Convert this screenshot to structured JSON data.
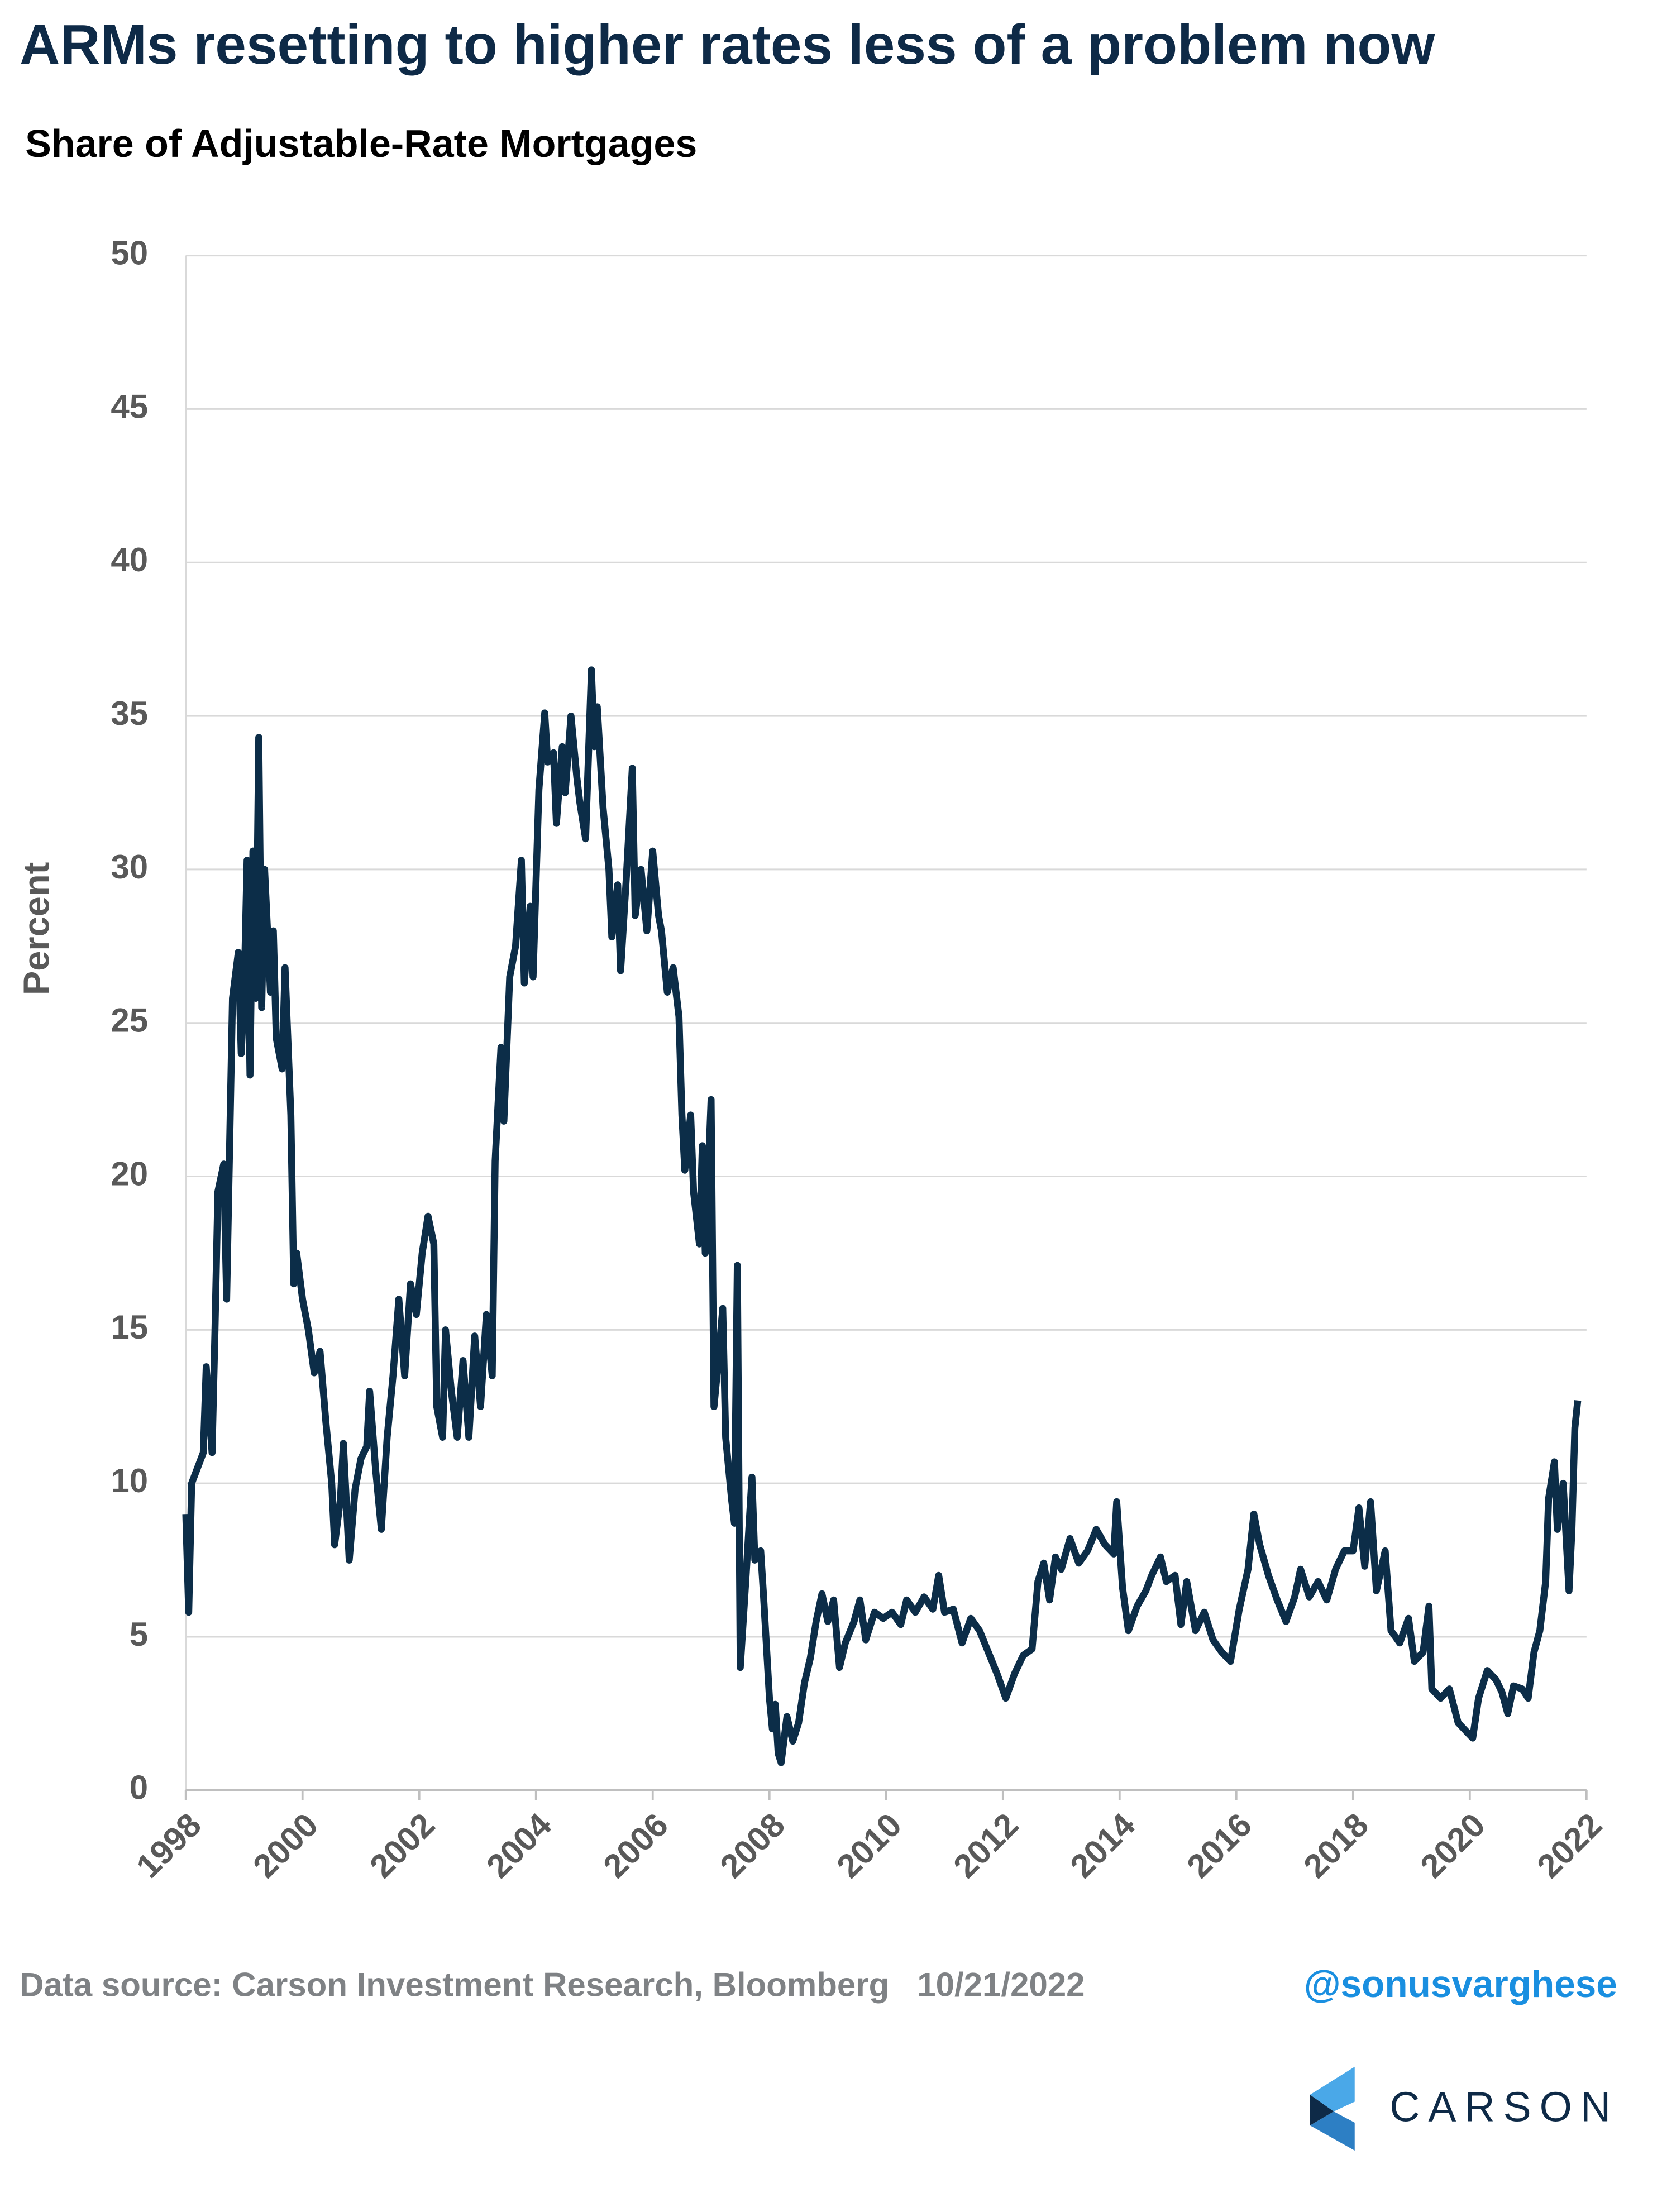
{
  "chart_data": {
    "type": "line",
    "title": "ARMs resetting to higher rates less of a problem now",
    "subtitle": "Share of Adjustable-Rate Mortgages",
    "y_label": "Percent",
    "source": "Data source: Carson Investment Research, Bloomberg   10/21/2022",
    "handle": "@sonusvarghese",
    "logo": "CARSON",
    "color": "#0c2d48",
    "grid": true,
    "xlim": [
      1998,
      2022
    ],
    "xticks": [
      1998,
      2000,
      2002,
      2004,
      2006,
      2008,
      2010,
      2012,
      2014,
      2016,
      2018,
      2020,
      2022
    ],
    "ylim": [
      0,
      50
    ],
    "yticks": [
      0,
      5,
      10,
      15,
      20,
      25,
      30,
      35,
      40,
      45,
      50
    ],
    "x": [
      1998.0,
      1998.05,
      1998.1,
      1998.2,
      1998.3,
      1998.35,
      1998.45,
      1998.5,
      1998.55,
      1998.65,
      1998.7,
      1998.8,
      1998.9,
      1998.95,
      1999.0,
      1999.05,
      1999.1,
      1999.15,
      1999.2,
      1999.25,
      1999.3,
      1999.35,
      1999.45,
      1999.5,
      1999.55,
      1999.65,
      1999.7,
      1999.8,
      1999.85,
      1999.9,
      2000.0,
      2000.1,
      2000.2,
      2000.3,
      2000.4,
      2000.5,
      2000.55,
      2000.65,
      2000.7,
      2000.8,
      2000.9,
      2001.0,
      2001.1,
      2001.15,
      2001.25,
      2001.35,
      2001.45,
      2001.55,
      2001.65,
      2001.75,
      2001.85,
      2001.95,
      2002.05,
      2002.15,
      2002.25,
      2002.3,
      2002.4,
      2002.45,
      2002.55,
      2002.65,
      2002.75,
      2002.85,
      2002.95,
      2003.05,
      2003.15,
      2003.25,
      2003.3,
      2003.4,
      2003.45,
      2003.55,
      2003.65,
      2003.75,
      2003.8,
      2003.9,
      2003.95,
      2004.05,
      2004.15,
      2004.2,
      2004.3,
      2004.35,
      2004.45,
      2004.5,
      2004.6,
      2004.7,
      2004.75,
      2004.85,
      2004.95,
      2005.0,
      2005.05,
      2005.15,
      2005.25,
      2005.3,
      2005.4,
      2005.45,
      2005.55,
      2005.65,
      2005.7,
      2005.8,
      2005.9,
      2006.0,
      2006.1,
      2006.15,
      2006.25,
      2006.35,
      2006.45,
      2006.5,
      2006.55,
      2006.65,
      2006.7,
      2006.8,
      2006.85,
      2006.9,
      2007.0,
      2007.05,
      2007.1,
      2007.2,
      2007.25,
      2007.35,
      2007.4,
      2007.45,
      2007.5,
      2007.6,
      2007.7,
      2007.75,
      2007.85,
      2007.9,
      2008.0,
      2008.05,
      2008.1,
      2008.15,
      2008.2,
      2008.3,
      2008.4,
      2008.5,
      2008.6,
      2008.7,
      2008.8,
      2008.9,
      2009.0,
      2009.1,
      2009.2,
      2009.3,
      2009.45,
      2009.55,
      2009.65,
      2009.8,
      2009.95,
      2010.1,
      2010.25,
      2010.35,
      2010.5,
      2010.65,
      2010.8,
      2010.9,
      2011.0,
      2011.15,
      2011.3,
      2011.45,
      2011.6,
      2011.75,
      2011.9,
      2012.05,
      2012.2,
      2012.35,
      2012.5,
      2012.6,
      2012.7,
      2012.8,
      2012.9,
      2013.0,
      2013.15,
      2013.3,
      2013.45,
      2013.6,
      2013.75,
      2013.9,
      2013.95,
      2014.05,
      2014.15,
      2014.3,
      2014.45,
      2014.55,
      2014.7,
      2014.8,
      2014.95,
      2015.05,
      2015.15,
      2015.3,
      2015.45,
      2015.6,
      2015.75,
      2015.9,
      2016.05,
      2016.2,
      2016.3,
      2016.4,
      2016.55,
      2016.7,
      2016.85,
      2017.0,
      2017.1,
      2017.25,
      2017.4,
      2017.55,
      2017.7,
      2017.85,
      2018.0,
      2018.1,
      2018.2,
      2018.3,
      2018.4,
      2018.55,
      2018.65,
      2018.8,
      2018.95,
      2019.05,
      2019.2,
      2019.3,
      2019.35,
      2019.5,
      2019.65,
      2019.8,
      2019.95,
      2020.05,
      2020.15,
      2020.3,
      2020.45,
      2020.55,
      2020.65,
      2020.75,
      2020.9,
      2021.0,
      2021.1,
      2021.2,
      2021.3,
      2021.35,
      2021.45,
      2021.5,
      2021.6,
      2021.7,
      2021.75,
      2021.8,
      2021.85
    ],
    "values": [
      9,
      5.8,
      10,
      10.5,
      11,
      13.8,
      11,
      15,
      19.5,
      20.4,
      16,
      25.8,
      27.3,
      24,
      26,
      30.3,
      23.3,
      30.6,
      25.8,
      34.3,
      25.5,
      30,
      26,
      28,
      24.5,
      23.5,
      26.8,
      22,
      16.5,
      17.5,
      16,
      15,
      13.6,
      14.3,
      12,
      10,
      8,
      9.5,
      11.3,
      7.5,
      9.8,
      10.8,
      11.2,
      13,
      10.5,
      8.5,
      11.5,
      13.5,
      16,
      13.5,
      16.5,
      15.5,
      17.5,
      18.7,
      17.8,
      12.5,
      11.5,
      15,
      13,
      11.5,
      14,
      11.5,
      14.8,
      12.5,
      15.5,
      13.5,
      20.5,
      24.2,
      21.8,
      26.5,
      27.5,
      30.3,
      26.3,
      28.8,
      26.5,
      32.6,
      35.1,
      33.5,
      33.8,
      31.5,
      34,
      32.5,
      35,
      33,
      32.2,
      31,
      36.5,
      34,
      35.3,
      32,
      30,
      27.8,
      29.5,
      26.7,
      29.8,
      33.3,
      28.5,
      30,
      28,
      30.6,
      28.5,
      28,
      26,
      26.8,
      25.2,
      22,
      20.2,
      22,
      19.5,
      17.8,
      21,
      17.5,
      22.5,
      12.5,
      13.5,
      15.7,
      11.5,
      9.5,
      8.7,
      17.1,
      4,
      7,
      10.2,
      7.5,
      7.8,
      6.3,
      3,
      2,
      2.8,
      1.2,
      0.9,
      2.4,
      1.6,
      2.2,
      3.5,
      4.3,
      5.5,
      6.4,
      5.5,
      6.2,
      4,
      4.8,
      5.5,
      6.2,
      4.9,
      5.8,
      5.6,
      5.8,
      5.4,
      6.2,
      5.8,
      6.3,
      5.9,
      7,
      5.8,
      5.9,
      4.8,
      5.6,
      5.2,
      4.5,
      3.8,
      3,
      3.8,
      4.4,
      4.6,
      6.8,
      7.4,
      6.2,
      7.6,
      7.2,
      8.2,
      7.4,
      7.8,
      8.5,
      8,
      7.7,
      9.4,
      6.6,
      5.2,
      6,
      6.5,
      7,
      7.6,
      6.8,
      7,
      5.4,
      6.8,
      5.2,
      5.8,
      4.9,
      4.5,
      4.2,
      5.9,
      7.2,
      9,
      8,
      7,
      6.2,
      5.5,
      6.3,
      7.2,
      6.3,
      6.8,
      6.2,
      7.2,
      7.8,
      7.8,
      9.2,
      7.3,
      9.4,
      6.5,
      7.8,
      5.2,
      4.8,
      5.6,
      4.2,
      4.5,
      6,
      3.3,
      3,
      3.3,
      2.2,
      1.9,
      1.7,
      3,
      3.9,
      3.6,
      3.2,
      2.5,
      3.4,
      3.3,
      3,
      4.5,
      5.2,
      6.8,
      9.5,
      10.7,
      8.5,
      10,
      6.5,
      8.5,
      11.8,
      12.7
    ]
  }
}
